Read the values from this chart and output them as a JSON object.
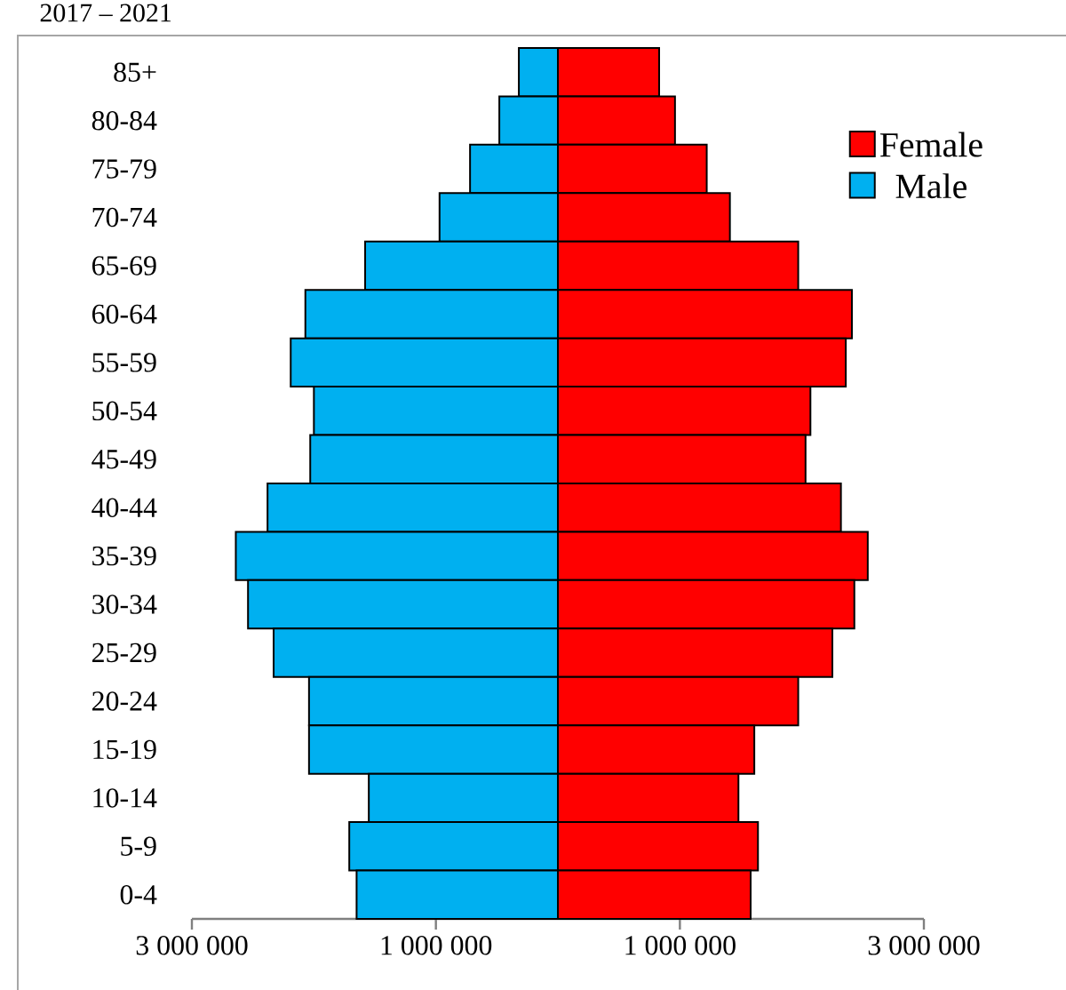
{
  "chart_data": {
    "type": "bar",
    "orientation": "horizontal",
    "title": "2017 – 2021",
    "categories": [
      "85+",
      "80-84",
      "75-79",
      "70-74",
      "65-69",
      "60-64",
      "55-59",
      "50-54",
      "45-49",
      "40-44",
      "35-39",
      "30-34",
      "25-29",
      "20-24",
      "15-19",
      "10-14",
      "5-9",
      "0-4"
    ],
    "series": [
      {
        "name": "Female",
        "color": "#ff0000",
        "values": [
          830000,
          960000,
          1220000,
          1410000,
          1970000,
          2410000,
          2360000,
          2070000,
          2030000,
          2320000,
          2540000,
          2430000,
          2250000,
          1970000,
          1610000,
          1480000,
          1640000,
          1580000
        ]
      },
      {
        "name": "Male",
        "color": "#00b0f0",
        "values": [
          -320000,
          -480000,
          -720000,
          -970000,
          -1580000,
          -2070000,
          -2190000,
          -2000000,
          -2030000,
          -2380000,
          -2640000,
          -2540000,
          -2330000,
          -2040000,
          -2040000,
          -1550000,
          -1710000,
          -1650000
        ]
      }
    ],
    "xlim": [
      -3000000,
      3000000
    ],
    "xticks": [
      {
        "value": -3000000,
        "label": "3 000 000"
      },
      {
        "value": -1000000,
        "label": "1 000 000"
      },
      {
        "value": 1000000,
        "label": "1 000 000"
      },
      {
        "value": 3000000,
        "label": "3 000 000"
      }
    ],
    "stacked": true,
    "legend": "top right"
  }
}
